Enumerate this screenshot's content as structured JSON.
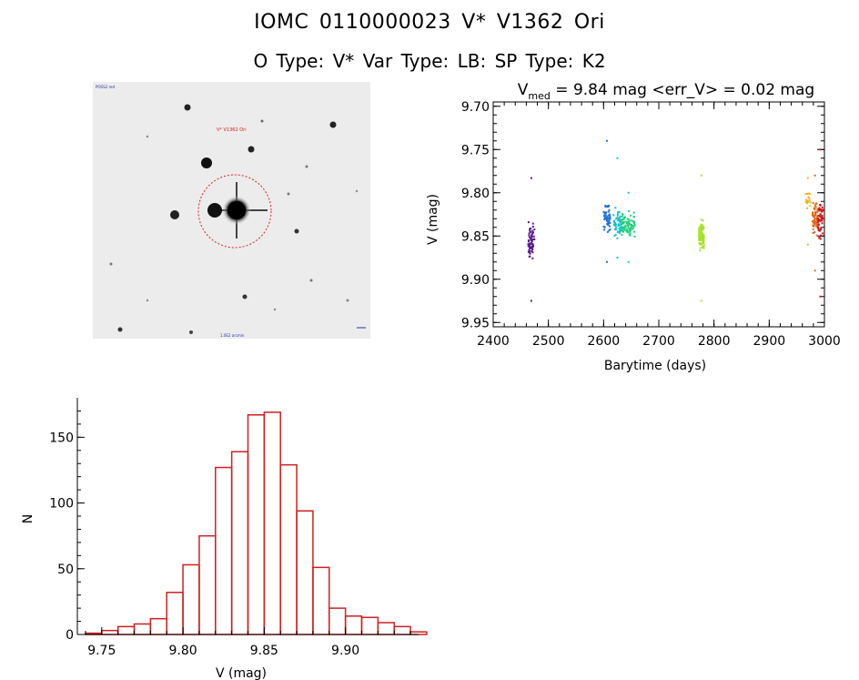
{
  "header": {
    "title": "IOMC 0110000023    V* V1362 Ori",
    "subtitle": "O Type: V*  Var Type: LB:  SP Type: K2"
  },
  "image_panel": {
    "target_label": "V* V1362 Ori",
    "corner_label": "POSS2 red",
    "bottom_label": "1.0E2 arcmin",
    "circle_color": "#dd2222"
  },
  "chart_data": [
    {
      "type": "scatter",
      "title_prefix": "V",
      "title_sub": "med",
      "title_rest": " = 9.84 mag <err_V> = 0.02 mag",
      "xlabel": "Barytime (days)",
      "ylabel": "V (mag)",
      "xlim": [
        2400,
        3000
      ],
      "ylim": [
        9.955,
        9.695
      ],
      "xticks": [
        2400,
        2500,
        2600,
        2700,
        2800,
        2900,
        3000
      ],
      "yticks": [
        9.7,
        9.75,
        9.8,
        9.85,
        9.9,
        9.95
      ],
      "clusters": [
        {
          "x_min": 2463,
          "x_max": 2475,
          "y_center": 9.855,
          "y_spread": 0.028,
          "y_top": 9.783,
          "y_bottom": 9.925,
          "n": 70,
          "color": "#5b1a8c"
        },
        {
          "x_min": 2600,
          "x_max": 2612,
          "y_center": 9.83,
          "y_spread": 0.022,
          "y_top": 9.74,
          "y_bottom": 9.88,
          "n": 50,
          "color": "#1e6fd6"
        },
        {
          "x_min": 2618,
          "x_max": 2632,
          "y_center": 9.835,
          "y_spread": 0.022,
          "y_top": 9.76,
          "y_bottom": 9.875,
          "n": 55,
          "color": "#19c2c9"
        },
        {
          "x_min": 2633,
          "x_max": 2657,
          "y_center": 9.838,
          "y_spread": 0.02,
          "y_top": 9.8,
          "y_bottom": 9.88,
          "n": 90,
          "color": "#22d07a"
        },
        {
          "x_min": 2772,
          "x_max": 2782,
          "y_center": 9.85,
          "y_spread": 0.022,
          "y_top": 9.78,
          "y_bottom": 9.925,
          "n": 100,
          "color": "#a6e22a"
        },
        {
          "x_min": 2965,
          "x_max": 2975,
          "y_center": 9.81,
          "y_spread": 0.012,
          "y_top": 9.783,
          "y_bottom": 9.86,
          "n": 20,
          "color": "#f2b21a"
        },
        {
          "x_min": 2978,
          "x_max": 2988,
          "y_center": 9.83,
          "y_spread": 0.025,
          "y_top": 9.78,
          "y_bottom": 9.89,
          "n": 60,
          "color": "#e06a1a"
        },
        {
          "x_min": 2988,
          "x_max": 2997,
          "y_center": 9.83,
          "y_spread": 0.03,
          "y_top": 9.75,
          "y_bottom": 9.92,
          "n": 50,
          "color": "#d01818"
        }
      ]
    },
    {
      "type": "bar",
      "xlabel": "V (mag)",
      "ylabel": "N",
      "xlim": [
        9.735,
        9.945
      ],
      "ylim": [
        0,
        180
      ],
      "xticks": [
        9.75,
        9.8,
        9.85,
        9.9
      ],
      "yticks": [
        0,
        50,
        100,
        150
      ],
      "bin_start": 9.74,
      "bin_width": 0.01,
      "values": [
        1,
        3,
        6,
        8,
        12,
        32,
        53,
        75,
        127,
        139,
        167,
        169,
        129,
        94,
        51,
        20,
        14,
        13,
        9,
        6,
        2
      ],
      "color": "#cc2222"
    }
  ]
}
